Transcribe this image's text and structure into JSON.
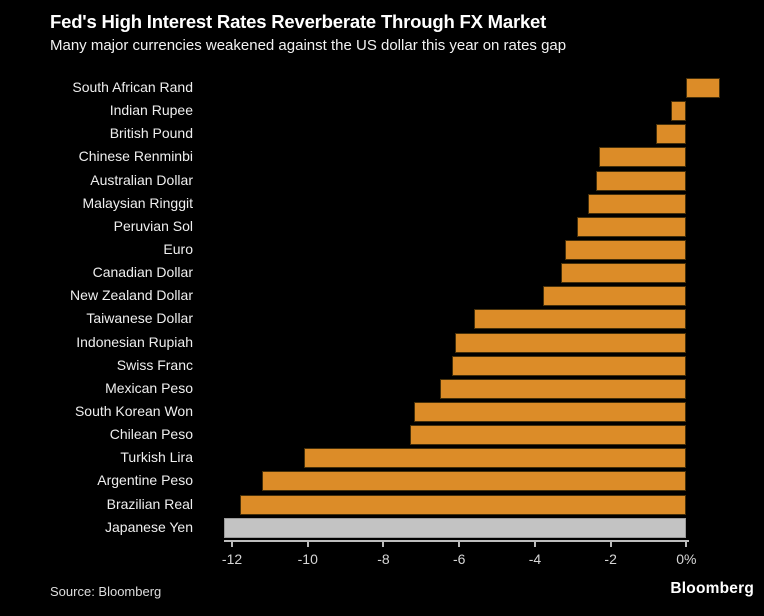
{
  "header": {
    "title": "Fed's High Interest Rates Reverberate Through FX Market",
    "subtitle": "Many major currencies weakened against the US dollar this year on rates gap"
  },
  "footer": {
    "source": "Source: Bloomberg",
    "logo": "Bloomberg"
  },
  "colors": {
    "background": "#000000",
    "bar": "#dc8c28",
    "bar_border": "#46300a",
    "highlight_bar": "#c3c3c3",
    "highlight_border": "#9b9b9b",
    "axis": "#bdbdbd",
    "title_text": "#ffffff",
    "category_text": "#efefef",
    "tick_text": "#d6d6d6"
  },
  "chart_data": {
    "type": "bar",
    "orientation": "horizontal",
    "title": "Fed's High Interest Rates Reverberate Through FX Market",
    "subtitle": "Many major currencies weakened against the US dollar this year on rates gap",
    "unit": "%",
    "xlabel": "",
    "ylabel": "",
    "xlim": [
      -12.82,
      2.05
    ],
    "grid": false,
    "legend": false,
    "categories": [
      "South African Rand",
      "Indian Rupee",
      "British Pound",
      "Chinese Renminbi",
      "Australian Dollar",
      "Malaysian Ringgit",
      "Peruvian Sol",
      "Euro",
      "Canadian Dollar",
      "New Zealand Dollar",
      "Taiwanese Dollar",
      "Indonesian Rupiah",
      "Swiss Franc",
      "Mexican Peso",
      "South Korean Won",
      "Chilean Peso",
      "Turkish Lira",
      "Argentine Peso",
      "Brazilian Real",
      "Japanese Yen"
    ],
    "values": [
      0.9,
      -0.4,
      -0.8,
      -2.3,
      -2.4,
      -2.6,
      -2.9,
      -3.2,
      -3.3,
      -3.8,
      -5.6,
      -6.1,
      -6.2,
      -6.5,
      -7.2,
      -7.3,
      -10.1,
      -11.2,
      -11.8,
      -12.2
    ],
    "highlight_category": "Japanese Yen",
    "x_ticks": [
      -12,
      -10,
      -8,
      -6,
      -4,
      -2,
      0
    ],
    "x_tick_labels": [
      "-12",
      "-10",
      "-8",
      "-6",
      "-4",
      "-2",
      "0%"
    ]
  }
}
